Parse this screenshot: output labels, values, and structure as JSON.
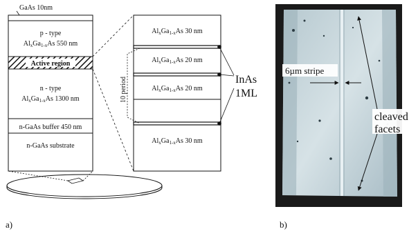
{
  "panel_a": {
    "label": "a)",
    "stack": {
      "cap_layer": "GaAs 10nm",
      "p_type_line1": "p - type",
      "p_type_line2_pre": "Al",
      "p_type_line2_x": "x",
      "p_type_line2_ga": "Ga",
      "p_type_line2_1mx": "1-x",
      "p_type_line2_post": "As 550 nm",
      "active_region": "Active region",
      "n_type_line1": "n - type",
      "n_type_line2_post": "As 1300 nm",
      "buffer": "n-GaAs buffer 450 nm",
      "substrate": "n-GaAs substrate"
    },
    "detail": {
      "layer_thick": "As 30 nm",
      "layer_thin": "As 20 nm",
      "period_label": "10 period",
      "inas_line1": "InAs",
      "inas_line2": "1ML"
    }
  },
  "panel_b": {
    "label": "b)",
    "stripe_label": "6µm stripe",
    "facets_line1": "cleaved",
    "facets_line2": "facets"
  },
  "colors": {
    "line": "#111111",
    "photo_light": "#c9d8de",
    "photo_dark": "#6f8a96",
    "frame": "#1a1a1a"
  }
}
